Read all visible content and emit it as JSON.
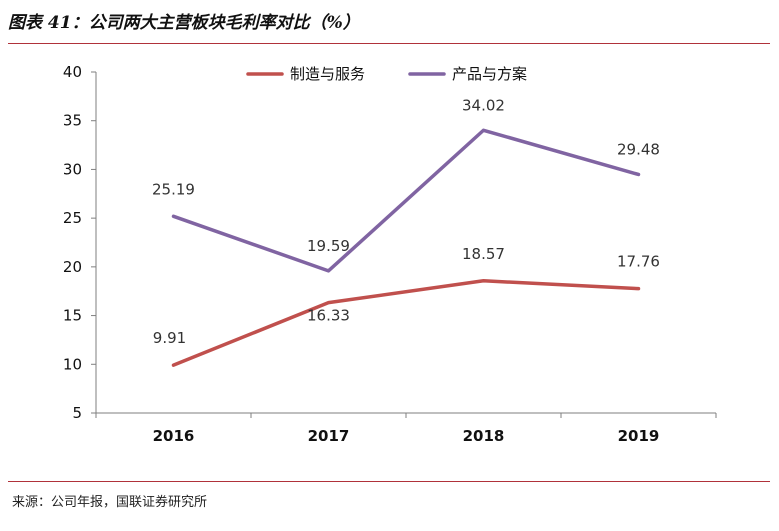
{
  "header": {
    "title": "图表 41：公司两大主营板块毛利率对比（%）"
  },
  "footer": {
    "source": "来源：公司年报，国联证券研究所"
  },
  "colors": {
    "rule": "#b0323a",
    "series_manufacturing": "#c0504d",
    "series_products": "#8064a2"
  },
  "chart_data": {
    "type": "line",
    "title": "图表 41：公司两大主营板块毛利率对比（%）",
    "x": [
      "2016",
      "2017",
      "2018",
      "2019"
    ],
    "series": [
      {
        "name": "制造与服务",
        "values": [
          9.91,
          16.33,
          18.57,
          17.76
        ],
        "labels": [
          "9.91",
          "16.33",
          "18.57",
          "17.76"
        ],
        "color": "#c0504d"
      },
      {
        "name": "产品与方案",
        "values": [
          25.19,
          19.59,
          34.02,
          29.48
        ],
        "labels": [
          "25.19",
          "19.59",
          "34.02",
          "29.48"
        ],
        "color": "#8064a2"
      }
    ],
    "ylim": [
      5,
      40
    ],
    "yticks": [
      "5",
      "10",
      "15",
      "20",
      "25",
      "30",
      "35",
      "40"
    ],
    "xlabel": "",
    "ylabel": "",
    "grid": false,
    "legend": "top-center"
  }
}
